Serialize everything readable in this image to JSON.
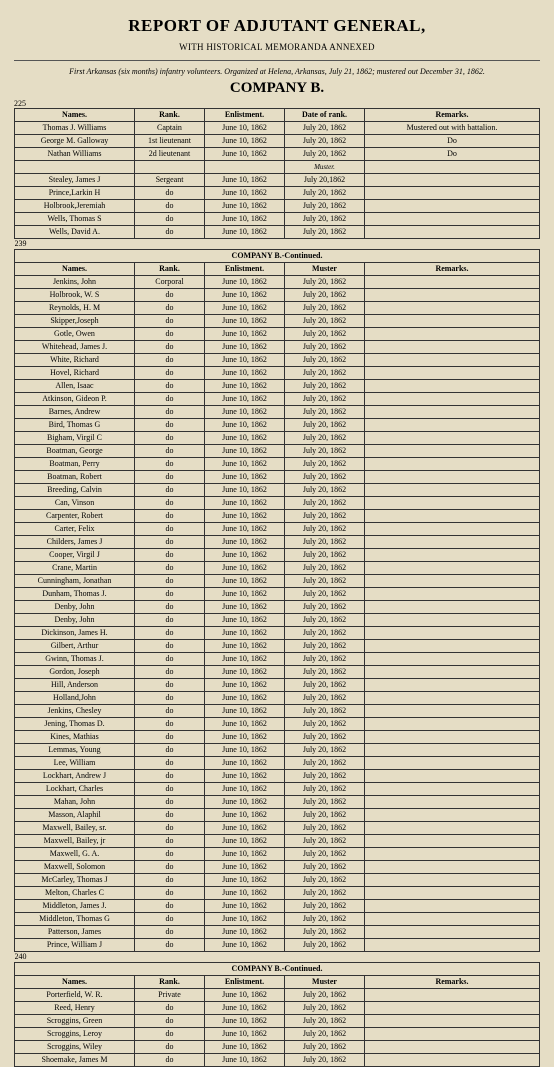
{
  "header": {
    "title": "REPORT OF ADJUTANT GENERAL,",
    "subtitle": "WITH HISTORICAL MEMORANDA ANNEXED",
    "note": "First Arkansas (six months) infantry volunteers. Organized at Helena, Arkansas, July 21, 1862; mustered out December 31, 1862.",
    "company": "COMPANY B."
  },
  "page_numbers": {
    "p1": "225",
    "p2": "239",
    "p3": "240"
  },
  "columns": {
    "names": "Names.",
    "rank": "Rank.",
    "enlist": "Enlistment.",
    "date_rank": "Date of rank.",
    "muster": "Muster",
    "remarks": "Remarks."
  },
  "continued": "COMPANY B.-Continued.",
  "muster_word": "Muster.",
  "officers": [
    {
      "n": "Thomas J. Williams",
      "r": "Captain",
      "e": "June 10, 1862",
      "d": "July 20, 1862",
      "rm": "Mustered out with battalion."
    },
    {
      "n": "George M. Galloway",
      "r": "1st lieutenant",
      "e": "June 10, 1862",
      "d": "July 20, 1862",
      "rm": "Do"
    },
    {
      "n": "Nathan Williams",
      "r": "2d lieutenant",
      "e": "June 10, 1862",
      "d": "July 20, 1862",
      "rm": "Do"
    }
  ],
  "sergeants": [
    {
      "n": "Stealey, James J",
      "r": "Sergeant",
      "e": "June 10, 1862",
      "d": "July 20,1862"
    },
    {
      "n": "Prince,Larkin H",
      "r": "do",
      "e": "June 10, 1862",
      "d": "July 20, 1862"
    },
    {
      "n": "Holbrook,Jeremiah",
      "r": "do",
      "e": "June 10, 1862",
      "d": "July 20, 1862"
    },
    {
      "n": "Wells, Thomas S",
      "r": "do",
      "e": "June 10, 1862",
      "d": "July 20, 1862"
    },
    {
      "n": "Wells, David A.",
      "r": "do",
      "e": "June 10, 1862",
      "d": "July  20, 1862"
    }
  ],
  "corporals": [
    {
      "n": "Jenkins, John",
      "r": "Corporal"
    },
    {
      "n": "Holbrook, W. S",
      "r": "do"
    },
    {
      "n": "Reynolds, H. M",
      "r": "do"
    },
    {
      "n": "Skipper,Joseph",
      "r": "do"
    },
    {
      "n": "Gotle, Owen",
      "r": "do"
    },
    {
      "n": "Whitehead, James J.",
      "r": "do"
    },
    {
      "n": "White, Richard",
      "r": "do"
    },
    {
      "n": "Hovel, Richard",
      "r": "do"
    },
    {
      "n": "Allen, Isaac",
      "r": "do"
    },
    {
      "n": "Atkinson, Gideon P.",
      "r": "do"
    },
    {
      "n": "Barnes, Andrew",
      "r": "do"
    },
    {
      "n": "Bird, Thomas G",
      "r": "do"
    },
    {
      "n": "Bigham, Virgil C",
      "r": "do"
    },
    {
      "n": "Boatman, George",
      "r": "do"
    },
    {
      "n": "Boatman, Perry",
      "r": "do"
    },
    {
      "n": "Boatman, Robert",
      "r": "do"
    },
    {
      "n": "Breeding, Calvin",
      "r": "do"
    },
    {
      "n": "Can, Vinson",
      "r": "do"
    },
    {
      "n": "Carpenter, Robert",
      "r": "do"
    },
    {
      "n": "Carter, Felix",
      "r": "do"
    },
    {
      "n": "Childers, James J",
      "r": "do"
    },
    {
      "n": "Cooper, Virgil J",
      "r": "do"
    },
    {
      "n": "Crane, Martin",
      "r": "do"
    },
    {
      "n": "Cunningham, Jonathan",
      "r": "do"
    },
    {
      "n": "Dunham, Thomas J.",
      "r": "do"
    },
    {
      "n": "Denby, John",
      "r": "do"
    },
    {
      "n": "Denby, John",
      "r": "do"
    },
    {
      "n": "Dickinson, James H.",
      "r": "do"
    },
    {
      "n": "Gilbert, Arthur",
      "r": "do"
    },
    {
      "n": "Gwinn, Thomas J.",
      "r": "do"
    },
    {
      "n": "Gordon, Joseph",
      "r": "do"
    },
    {
      "n": "Hill, Anderson",
      "r": "do"
    },
    {
      "n": "Holland,John",
      "r": "do"
    },
    {
      "n": "Jenkins, Chesley",
      "r": "do"
    },
    {
      "n": "Jening, Thomas D.",
      "r": "do"
    },
    {
      "n": "Kines, Mathias",
      "r": "do"
    },
    {
      "n": "Lemmas, Young",
      "r": "do"
    },
    {
      "n": "Lee, William",
      "r": "do"
    },
    {
      "n": "Lockhart, Andrew J",
      "r": "do"
    },
    {
      "n": "Lockhart, Charles",
      "r": "do"
    },
    {
      "n": "Mahan, John",
      "r": "do"
    },
    {
      "n": "Masson, Alaphil",
      "r": "do"
    },
    {
      "n": "Maxwell, Bailey, sr.",
      "r": "do"
    },
    {
      "n": "Maxwell, Bailey, jr",
      "r": "do"
    },
    {
      "n": "Maxwell, G. A.",
      "r": "do"
    },
    {
      "n": "Maxwell, Solomon",
      "r": "do"
    },
    {
      "n": "McCarley, Thomas J",
      "r": "do"
    },
    {
      "n": "Melton, Charles C",
      "r": "do"
    },
    {
      "n": "Middleton, James J.",
      "r": "do"
    },
    {
      "n": "Middleton, Thomas G",
      "r": "do"
    },
    {
      "n": "Patterson, James",
      "r": "do"
    },
    {
      "n": "Prince, William J",
      "r": "do"
    }
  ],
  "privates": [
    {
      "n": "Porterfield, W. R.",
      "r": "Private"
    },
    {
      "n": "Reed, Henry",
      "r": "do"
    },
    {
      "n": "Scroggins, Green",
      "r": "do"
    },
    {
      "n": "Scroggins, Leroy",
      "r": "do"
    },
    {
      "n": "Scroggins, Wiley",
      "r": "do"
    },
    {
      "n": "Shoemake, James M",
      "r": "do"
    }
  ],
  "default_e": "June 10, 1862",
  "default_m": "July 20, 1862"
}
